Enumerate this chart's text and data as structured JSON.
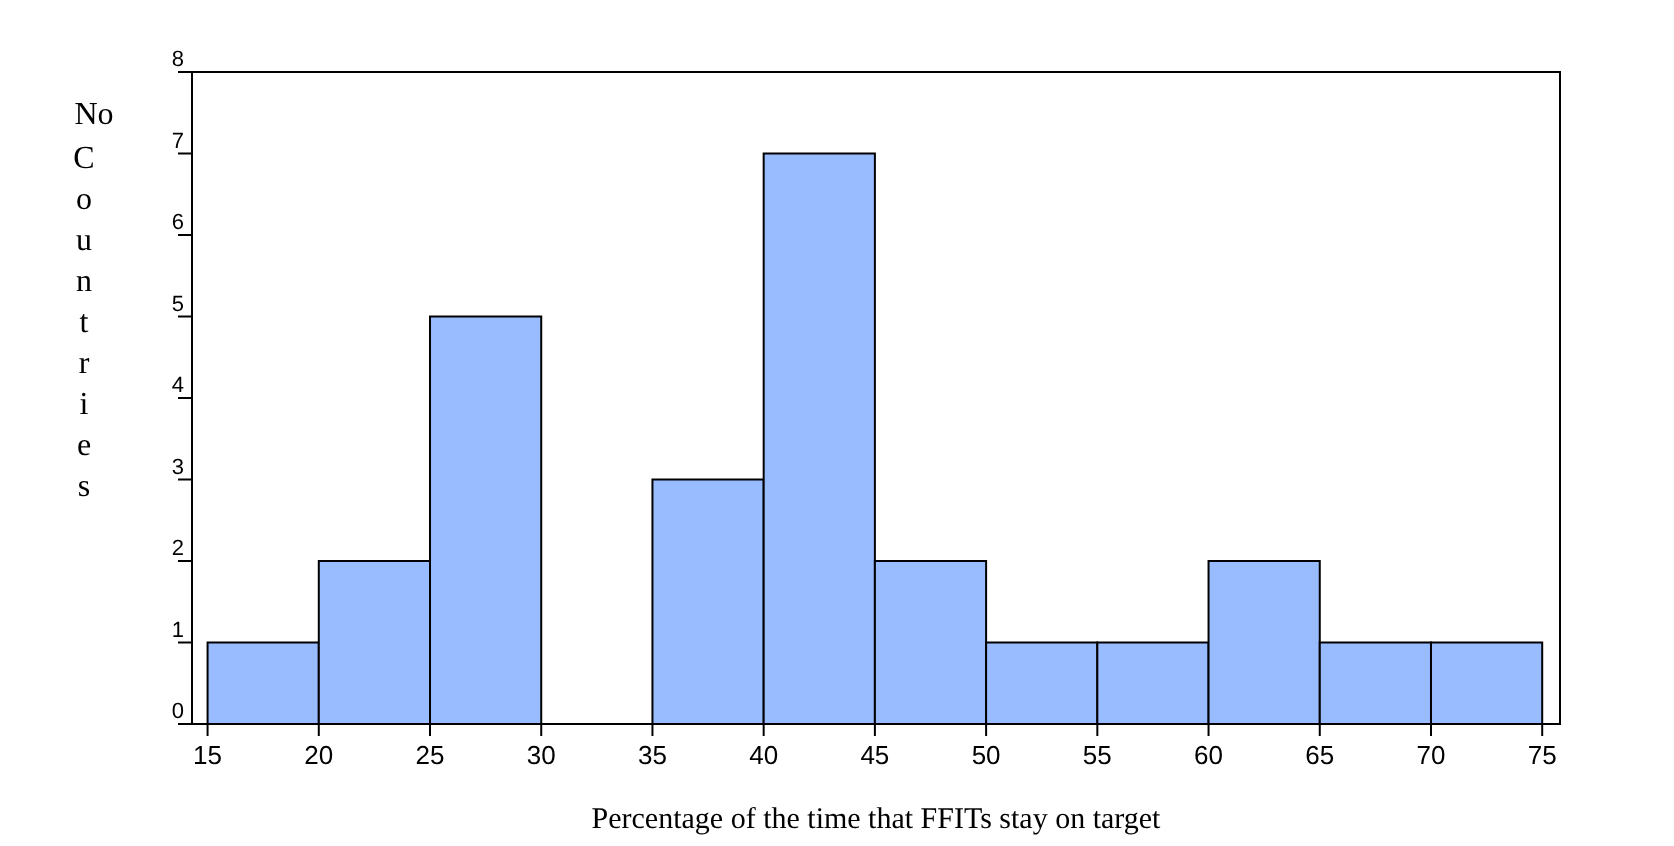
{
  "chart_data": {
    "type": "histogram",
    "xlabel": "Percentage of the time that FFITs stay on target",
    "ylabel": "No Countries",
    "bins": [
      15,
      20,
      25,
      30,
      35,
      40,
      45,
      50,
      55,
      60,
      65,
      70,
      75
    ],
    "values": [
      1,
      2,
      5,
      0,
      3,
      7,
      2,
      1,
      1,
      2,
      1,
      1
    ],
    "color": "#99bbff",
    "xlim": [
      14.3,
      75.8
    ],
    "xticks": [
      15,
      20,
      25,
      30,
      35,
      40,
      45,
      50,
      55,
      60,
      65,
      70,
      75
    ],
    "ylim": [
      0,
      8
    ],
    "yticks": [
      0,
      1,
      2,
      3,
      4,
      5,
      6,
      7,
      8
    ],
    "grid": false
  }
}
